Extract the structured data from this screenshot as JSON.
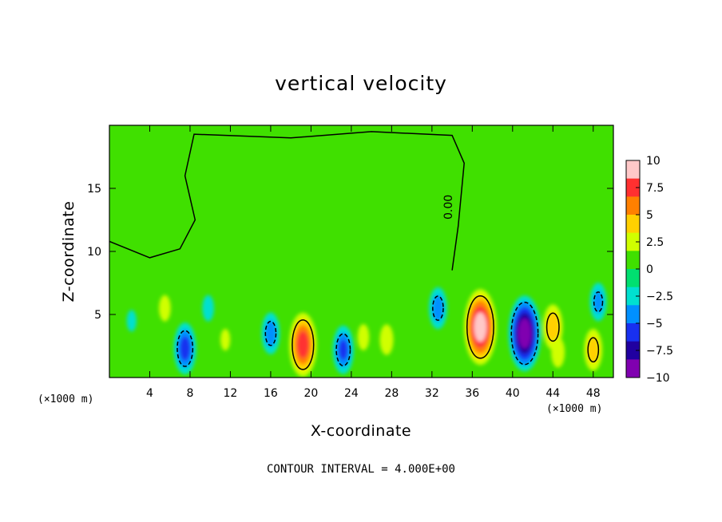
{
  "chart_data": {
    "type": "heatmap",
    "title": "vertical velocity",
    "xlabel": "X-coordinate",
    "ylabel": "Z-coordinate",
    "x_unit": "(×1000 m)",
    "xlim": [
      0,
      50
    ],
    "ylim": [
      0,
      20
    ],
    "x_ticks": [
      4,
      8,
      12,
      16,
      20,
      24,
      28,
      32,
      36,
      40,
      44,
      48
    ],
    "y_ticks": [
      5,
      10,
      15
    ],
    "footer": "CONTOUR INTERVAL = 4.000E+00",
    "contour_label": "0.00",
    "colorbar": {
      "ticks": [
        "10",
        "7.5",
        "5",
        "2.5",
        "0",
        "-2.5",
        "-5",
        "-7.5",
        "-10"
      ],
      "min": -10,
      "max": 10,
      "colors": [
        "#ffc8c8",
        "#ff3030",
        "#ff8000",
        "#ffd000",
        "#d0ff00",
        "#40e000",
        "#00e070",
        "#00e0d0",
        "#0090ff",
        "#1830f0",
        "#2000a0",
        "#8000b0"
      ]
    },
    "features": [
      {
        "x": 2.2,
        "z": 4.5,
        "value": -2.0
      },
      {
        "x": 5.5,
        "z": 5.5,
        "value": 2.5
      },
      {
        "x": 7.5,
        "z": 2.3,
        "value": -6.0
      },
      {
        "x": 9.8,
        "z": 5.5,
        "value": -2.5
      },
      {
        "x": 11.5,
        "z": 3.0,
        "value": 2.0
      },
      {
        "x": 16.0,
        "z": 3.5,
        "value": -4.5
      },
      {
        "x": 19.2,
        "z": 2.6,
        "value": 8.0
      },
      {
        "x": 23.2,
        "z": 2.2,
        "value": -5.5
      },
      {
        "x": 25.2,
        "z": 3.2,
        "value": 2.5
      },
      {
        "x": 27.5,
        "z": 3.0,
        "value": 3.0
      },
      {
        "x": 32.6,
        "z": 5.5,
        "value": -4.5
      },
      {
        "x": 36.8,
        "z": 4.0,
        "value": 10.0
      },
      {
        "x": 41.2,
        "z": 3.5,
        "value": -10.0
      },
      {
        "x": 44.0,
        "z": 4.0,
        "value": 5.0
      },
      {
        "x": 44.5,
        "z": 2.0,
        "value": 3.0
      },
      {
        "x": 48.0,
        "z": 2.2,
        "value": 4.5
      },
      {
        "x": 48.5,
        "z": 6.0,
        "value": -4.0
      }
    ]
  }
}
